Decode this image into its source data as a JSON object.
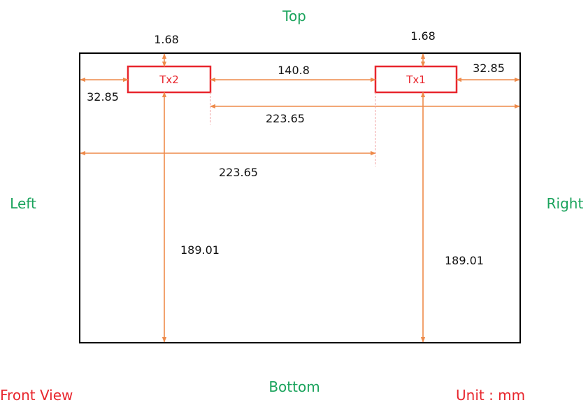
{
  "labels": {
    "top": "Top",
    "bottom": "Bottom",
    "left": "Left",
    "right": "Right",
    "view": "Front View",
    "unit": "Unit : mm"
  },
  "tx": {
    "tx1": "Tx1",
    "tx2": "Tx2"
  },
  "dims": {
    "top_gap_tx2": "1.68",
    "top_gap_tx1": "1.68",
    "left_gap_tx2": "32.85",
    "right_gap_tx1": "32.85",
    "tx_spacing": "140.8",
    "tx2_to_right": "223.65",
    "left_to_tx1": "223.65",
    "tx2_to_bottom": "189.01",
    "tx1_to_bottom": "189.01"
  },
  "colors": {
    "title_green": "#1aa35c",
    "accent_red": "#e8262d",
    "dimension_orange": "#ee8a4a",
    "frame_black": "#000000"
  }
}
